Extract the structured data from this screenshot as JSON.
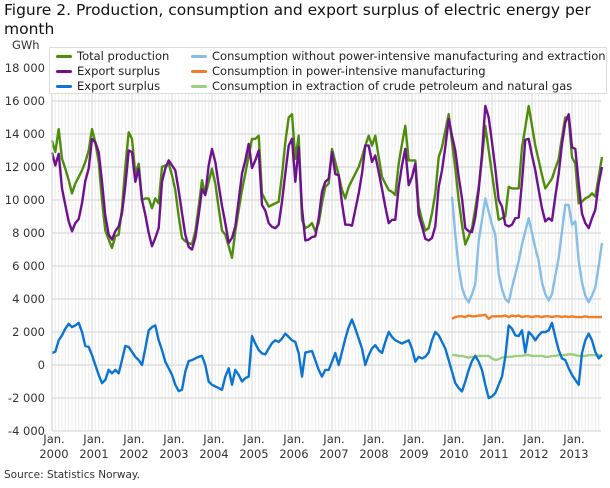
{
  "title": "Figure 2. Production, consumption and export surplus of electric energy per month",
  "source": "Source: Statistics Norway.",
  "chart_data": {
    "type": "line",
    "unit_label": "GWh",
    "x_start": "2000-01",
    "frequency": "monthly",
    "x_tick_labels": [
      [
        "Jan.",
        "2000"
      ],
      [
        "Jan.",
        "2001"
      ],
      [
        "Jan.",
        "2002"
      ],
      [
        "Jan.",
        "2003"
      ],
      [
        "Jan.",
        "2004"
      ],
      [
        "Jan.",
        "2005"
      ],
      [
        "Jan.",
        "2006"
      ],
      [
        "Jan.",
        "2007"
      ],
      [
        "Jan.",
        "2008"
      ],
      [
        "Jan.",
        "2009"
      ],
      [
        "Jan.",
        "2010"
      ],
      [
        "Jan.",
        "2011"
      ],
      [
        "Jan.",
        "2012"
      ],
      [
        "Jan.",
        "2013"
      ]
    ],
    "y_ticks": [
      18000,
      16000,
      14000,
      12000,
      10000,
      8000,
      6000,
      4000,
      2000,
      0,
      -2000,
      -4000
    ],
    "y_tick_labels": [
      "18 000",
      "16 000",
      "14 000",
      "12 000",
      "10 000",
      "8 000",
      "6 000",
      "4 000",
      "2 000",
      "0",
      "-2 000",
      "-4 000"
    ],
    "ylim": [
      -4000,
      18000
    ],
    "grid": true,
    "legend_placement": "top",
    "series": [
      {
        "name": "Total production",
        "color": "#4e8c0c",
        "start": "2000-01",
        "values": [
          13600,
          12900,
          14300,
          12500,
          11900,
          11200,
          10400,
          11000,
          11400,
          11800,
          12300,
          13000,
          14300,
          13500,
          12300,
          10000,
          8150,
          7600,
          7100,
          7800,
          7900,
          9500,
          12000,
          14100,
          13700,
          11600,
          12200,
          10000,
          10100,
          10100,
          9500,
          10100,
          9800,
          12000,
          12100,
          12200,
          11500,
          10600,
          9000,
          7700,
          7500,
          7400,
          7300,
          8100,
          9600,
          11200,
          10300,
          11100,
          11900,
          11000,
          9500,
          8150,
          7900,
          7200,
          6500,
          8100,
          9400,
          10600,
          11600,
          12700,
          13700,
          13700,
          13900,
          10400,
          10000,
          9600,
          9700,
          9800,
          9900,
          11500,
          13500,
          15000,
          15200,
          12500,
          13900,
          8800,
          8300,
          8400,
          8600,
          8100,
          8600,
          9800,
          10800,
          11000,
          13100,
          12300,
          11500,
          10600,
          10100,
          10800,
          11200,
          11600,
          12000,
          12600,
          13300,
          13900,
          13300,
          13900,
          12600,
          11400,
          11000,
          10600,
          10500,
          10300,
          12200,
          13400,
          14500,
          12400,
          12400,
          12400,
          9600,
          8800,
          8150,
          8300,
          9200,
          10400,
          12600,
          13200,
          14200,
          15200,
          13500,
          11900,
          10000,
          8500,
          7300,
          7800,
          8300,
          9500,
          10800,
          12500,
          14500,
          13000,
          11600,
          10200,
          8800,
          8900,
          9000,
          10800,
          10700,
          10700,
          10700,
          13200,
          14400,
          15700,
          14500,
          13300,
          12400,
          11500,
          10700,
          11000,
          11300,
          11900,
          12500,
          13800,
          15000,
          15000,
          12600,
          12200,
          9800,
          9900,
          10100,
          10200,
          10400,
          10200,
          11400,
          12600
        ]
      },
      {
        "name": "Export surplus",
        "color": "#6d118f",
        "start": "2000-01",
        "values": [
          12870,
          12100,
          12800,
          10700,
          9700,
          8700,
          8100,
          8600,
          8840,
          9800,
          11150,
          11900,
          13700,
          13500,
          12900,
          11100,
          9050,
          7900,
          7600,
          8100,
          8400,
          9200,
          10850,
          13000,
          12900,
          11100,
          11900,
          10000,
          9100,
          8000,
          7200,
          7700,
          8300,
          11100,
          11900,
          12400,
          12100,
          11800,
          10580,
          9200,
          7900,
          7160,
          7000,
          7700,
          9100,
          10650,
          10300,
          12100,
          13100,
          12300,
          10900,
          9650,
          8600,
          7400,
          7700,
          8400,
          10000,
          11600,
          12400,
          13400,
          11940,
          12400,
          13000,
          9700,
          9360,
          8600,
          8370,
          8300,
          8500,
          9900,
          11600,
          13300,
          13700,
          11100,
          13200,
          9500,
          7550,
          7600,
          7750,
          7800,
          8900,
          10500,
          11100,
          11300,
          12900,
          11570,
          11500,
          9800,
          8500,
          8500,
          8440,
          9400,
          10400,
          11600,
          13300,
          13300,
          12300,
          12700,
          11700,
          10670,
          9600,
          8600,
          8800,
          8800,
          10800,
          12100,
          13100,
          10900,
          11400,
          12200,
          9100,
          8400,
          7650,
          7550,
          7700,
          8400,
          10800,
          11800,
          13200,
          14900,
          13900,
          13000,
          11400,
          10100,
          8300,
          8100,
          8060,
          8950,
          10600,
          12800,
          15700,
          15000,
          13500,
          11900,
          10000,
          9600,
          8500,
          8400,
          8500,
          8900,
          8940,
          11100,
          13650,
          13700,
          12700,
          11800,
          10600,
          9500,
          8700,
          8900,
          8750,
          10200,
          11600,
          13400,
          14700,
          15200,
          13200,
          13100,
          11000,
          9170,
          8600,
          8300,
          8900,
          9400,
          11000,
          12000
        ]
      },
      {
        "name": "Export surplus",
        "color": "#0b74d3",
        "start": "2000-01",
        "values": [
          730,
          800,
          1500,
          1800,
          2200,
          2500,
          2300,
          2400,
          2560,
          2000,
          1150,
          1100,
          600,
          0,
          -600,
          -1100,
          -900,
          -300,
          -500,
          -300,
          -500,
          300,
          1150,
          1100,
          800,
          500,
          300,
          0,
          1000,
          2100,
          2300,
          2400,
          1500,
          900,
          200,
          -200,
          -600,
          -1200,
          -1580,
          -1500,
          -400,
          240,
          300,
          400,
          500,
          550,
          0,
          -1000,
          -1200,
          -1300,
          -1400,
          -1500,
          -700,
          -200,
          -1200,
          -300,
          -600,
          -1000,
          -800,
          -700,
          1760,
          1300,
          900,
          700,
          640,
          1000,
          1330,
          1500,
          1400,
          1600,
          1900,
          1700,
          1500,
          1400,
          700,
          -700,
          750,
          800,
          850,
          300,
          -300,
          -700,
          -300,
          -300,
          200,
          730,
          0,
          800,
          1600,
          2300,
          2760,
          2200,
          1600,
          1000,
          0,
          600,
          1000,
          1200,
          900,
          730,
          1400,
          2000,
          1700,
          1500,
          1400,
          1300,
          1400,
          1500,
          1000,
          200,
          500,
          400,
          500,
          750,
          1500,
          2000,
          1800,
          1400,
          1000,
          300,
          -400,
          -1100,
          -1400,
          -1600,
          -1000,
          -300,
          240,
          550,
          200,
          -300,
          -1200,
          -2000,
          -1900,
          -1700,
          -1200,
          -700,
          500,
          2400,
          2200,
          1800,
          1760,
          2100,
          750,
          2000,
          1800,
          1500,
          1800,
          2000,
          2000,
          2100,
          2550,
          1700,
          900,
          400,
          300,
          -200,
          -600,
          -900,
          -1200,
          730,
          1500,
          1900,
          1500,
          800,
          400,
          600
        ]
      },
      {
        "name": "Consumption without power-intensive manufacturing and extraction",
        "color": "#86bde9",
        "start": "2010-01",
        "values": [
          10200,
          7900,
          5900,
          4700,
          4100,
          3800,
          4300,
          4900,
          7500,
          8800,
          10100,
          9300,
          8500,
          7900,
          5500,
          4600,
          4000,
          3800,
          4700,
          5500,
          6300,
          7300,
          8100,
          8900,
          8000,
          7100,
          6300,
          5000,
          4300,
          3900,
          4300,
          5400,
          6500,
          8100,
          9700,
          9700,
          8500,
          8700,
          6300,
          5000,
          4200,
          3800,
          4200,
          4700,
          6000,
          7400
        ]
      },
      {
        "name": "Consumption in power-intensive manufacturing",
        "color": "#f07d2a",
        "start": "2010-01",
        "values": [
          2800,
          2900,
          2950,
          2950,
          2900,
          3000,
          2950,
          2950,
          3000,
          3000,
          3050,
          2800,
          2950,
          2950,
          2950,
          2950,
          3000,
          2900,
          3000,
          2950,
          3000,
          2900,
          2950,
          2950,
          2900,
          2950,
          2950,
          2900,
          2950,
          2950,
          2900,
          2950,
          2950,
          2900,
          2950,
          2900,
          2950,
          2900,
          2900,
          2900,
          2950,
          2900,
          2900,
          2900,
          2900,
          2900
        ]
      },
      {
        "name": "Consumption in extraction of crude petroleum and natural gas",
        "color": "#9ccf7f",
        "start": "2010-01",
        "values": [
          600,
          600,
          550,
          550,
          500,
          450,
          500,
          500,
          550,
          550,
          550,
          550,
          400,
          300,
          350,
          450,
          500,
          500,
          500,
          550,
          550,
          550,
          600,
          600,
          550,
          550,
          550,
          550,
          500,
          500,
          550,
          550,
          600,
          600,
          600,
          650,
          650,
          600,
          550,
          550,
          550,
          600,
          600,
          600,
          600,
          600
        ]
      }
    ]
  }
}
